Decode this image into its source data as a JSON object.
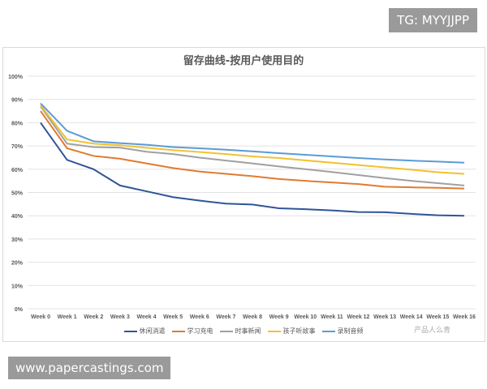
{
  "overlays": {
    "tg": "TG: MYYJJPP",
    "url": "www.papercastings.com",
    "watermark": "产品人么青"
  },
  "chart_data": {
    "type": "line",
    "title": "留存曲线-按用户使用目的",
    "categories": [
      "Week 0",
      "Week 1",
      "Week 2",
      "Week 3",
      "Week 4",
      "Week 5",
      "Week 6",
      "Week 7",
      "Week 8",
      "Week 9",
      "Week 10",
      "Week 11",
      "Week 12",
      "Week 13",
      "Week 14",
      "Week 15",
      "Week 16"
    ],
    "yticks": [
      "0%",
      "10%",
      "20%",
      "30%",
      "40%",
      "50%",
      "60%",
      "70%",
      "80%",
      "90%",
      "100%"
    ],
    "ylim": [
      0,
      100
    ],
    "grid": true,
    "legend": "bottom",
    "series": [
      {
        "name": "休闲消遣",
        "color": "#2f5597",
        "values": [
          80,
          64,
          60,
          53,
          50.5,
          48,
          46.5,
          45.2,
          44.8,
          43.2,
          42.8,
          42.3,
          41.6,
          41.5,
          40.8,
          40.2,
          40
        ]
      },
      {
        "name": "学习充电",
        "color": "#e07b30",
        "values": [
          85,
          69,
          65.7,
          64.5,
          62.5,
          60.5,
          59,
          58,
          57,
          55.8,
          55,
          54.3,
          53.6,
          52.5,
          52.2,
          52,
          51.7
        ]
      },
      {
        "name": "时事新闻",
        "color": "#a0a0a0",
        "values": [
          87,
          71,
          69.5,
          69.3,
          67.5,
          66.5,
          65,
          63.7,
          62.5,
          61.2,
          60,
          58.8,
          57.5,
          56.2,
          55,
          54,
          53
        ]
      },
      {
        "name": "孩子听故事",
        "color": "#f2c12e",
        "values": [
          87.5,
          72.8,
          71,
          70.3,
          69.2,
          68.2,
          67.4,
          66.5,
          65.5,
          64.8,
          63.8,
          62.8,
          61.8,
          60.8,
          59.8,
          58.7,
          58
        ]
      },
      {
        "name": "录制音频",
        "color": "#5b9bd5",
        "values": [
          88.3,
          76.5,
          72,
          71.2,
          70.5,
          69.5,
          69,
          68.4,
          67.7,
          66.9,
          66.2,
          65.5,
          64.8,
          64.2,
          63.7,
          63.3,
          62.8
        ]
      }
    ]
  }
}
